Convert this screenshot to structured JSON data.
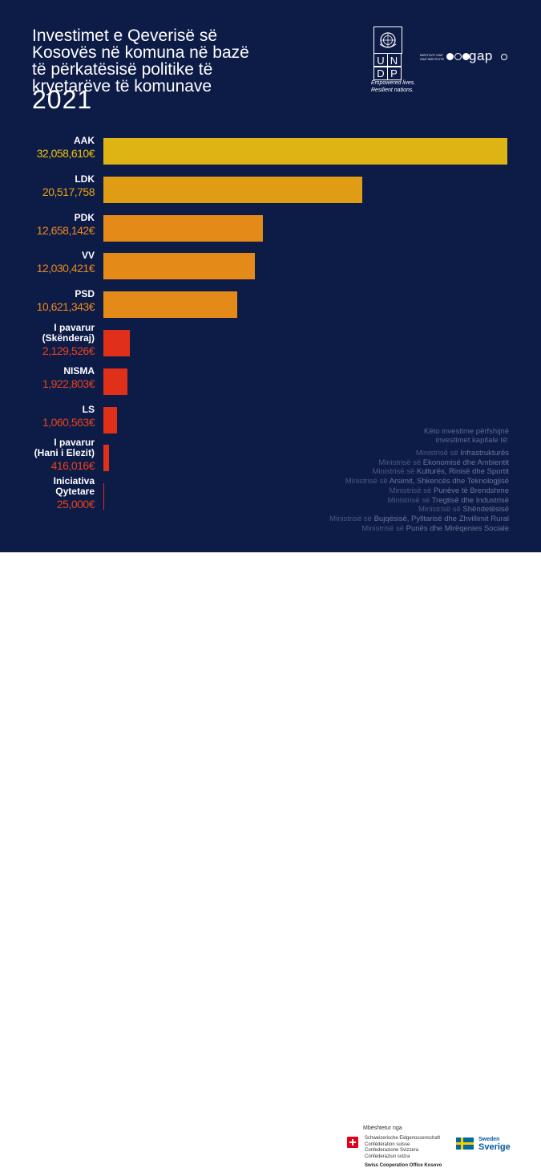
{
  "header": {
    "title_lines": [
      "Investimet e Qeverisë së",
      "Kosovës në komuna në bazë",
      "të përkatësisë politike të",
      "kryetarëve të komunave"
    ],
    "year": "2021"
  },
  "logos": {
    "undp_letters": [
      "U",
      "N",
      "D",
      "P"
    ],
    "undp_tagline": [
      "Empowered lives.",
      "Resilient nations."
    ],
    "gap_small": [
      "INSTITUTI GAP",
      "GAP INSTITUTE"
    ],
    "gap_word": "gap"
  },
  "chart_data": {
    "type": "bar",
    "orientation": "horizontal",
    "categories": [
      "AAK",
      "LDK",
      "PDK",
      "VV",
      "PSD",
      "I pavarur\n(Skënderaj)",
      "NISMA",
      "LS",
      "I pavarur\n(Hani i Elezit)",
      "Iniciativa\nQytetare"
    ],
    "values": [
      32058610,
      20517758,
      12658142,
      12030421,
      10621343,
      2129526,
      1922803,
      1060563,
      416016,
      25000
    ],
    "value_labels": [
      "32,058,610€",
      "20,517,758",
      "12,658,142€",
      "12,030,421€",
      "10,621,343€",
      "2,129,526€",
      "1,922,803€",
      "1,060,563€",
      "416,016€",
      "25,000€"
    ],
    "colors": [
      "#ddb414",
      "#e09c14",
      "#e38a18",
      "#e38a18",
      "#e38a18",
      "#e0301a",
      "#e0301a",
      "#e0301a",
      "#e0301a",
      "#e0301a"
    ],
    "label_colors": [
      "#ecc20c",
      "#e9a412",
      "#ec8a1a",
      "#ec8a1a",
      "#ec8a1a",
      "#e8431e",
      "#e8431e",
      "#e8431e",
      "#e8431e",
      "#e8431e"
    ],
    "xlim": [
      0,
      32058610
    ],
    "grid": false,
    "legend": "none"
  },
  "notes": {
    "heading": [
      "Këto investime përfshijnë",
      "investimet kapitale të:"
    ],
    "items": [
      {
        "prefix": "Ministrisë së",
        "name": "Infrastrukturës"
      },
      {
        "prefix": "Ministrisë së",
        "name": "Ekonomisë dhe Ambientit"
      },
      {
        "prefix": "Ministrisë së",
        "name": "Kulturës, Rinisë dhe Sportit"
      },
      {
        "prefix": "Ministrisë së",
        "name": "Arsimit, Shkencës dhe Teknologjisë"
      },
      {
        "prefix": "Ministrisë së",
        "name": "Punëve të Brendshme"
      },
      {
        "prefix": "Ministrisë së",
        "name": "Tregtisë dhe Industrisë"
      },
      {
        "prefix": "Ministrisë së",
        "name": "Shëndetësisë"
      },
      {
        "prefix": "Ministrisë së",
        "name": "Bujqësisë, Pylltarisë dhe Zhvillimit Rural"
      },
      {
        "prefix": "Ministrisë së",
        "name": "Punës dhe Mirëqenies Sociale"
      }
    ]
  },
  "footer": {
    "supported_by": "Mbështetur nga",
    "swiss_names": [
      "Schweizerische Eidgenossenschaft",
      "Confédération suisse",
      "Confederazione Svizzera",
      "Confederaziun svizra"
    ],
    "swiss_office": "Swiss Cooperation Office Kosovo",
    "sweden_small": "Sweden",
    "sweden_big": "Sverige"
  }
}
